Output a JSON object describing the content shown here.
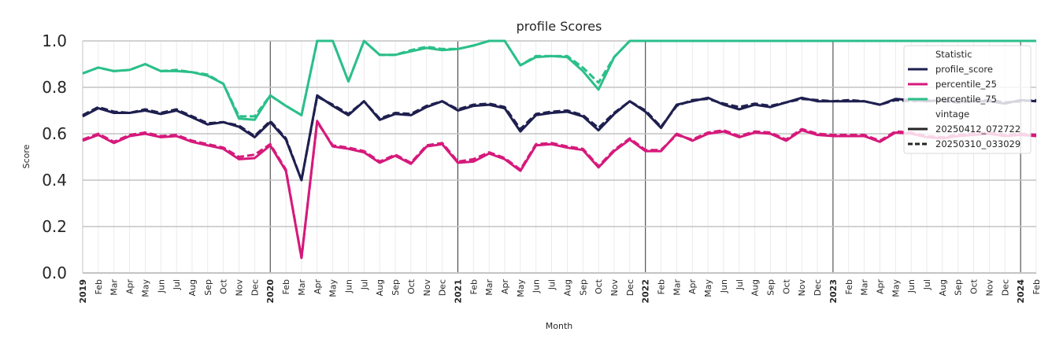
{
  "chart_data": {
    "type": "line",
    "title": "profile Scores",
    "xlabel": "Month",
    "ylabel": "Score",
    "ylim": [
      0,
      1.0
    ],
    "yticks": [
      "0.0",
      "0.2",
      "0.4",
      "0.6",
      "0.8",
      "1.0"
    ],
    "x": [
      "2019-01",
      "2019-02",
      "2019-03",
      "2019-04",
      "2019-05",
      "2019-06",
      "2019-07",
      "2019-08",
      "2019-09",
      "2019-10",
      "2019-11",
      "2019-12",
      "2020-01",
      "2020-02",
      "2020-03",
      "2020-04",
      "2020-05",
      "2020-06",
      "2020-07",
      "2020-08",
      "2020-09",
      "2020-10",
      "2020-11",
      "2020-12",
      "2021-01",
      "2021-02",
      "2021-03",
      "2021-04",
      "2021-05",
      "2021-06",
      "2021-07",
      "2021-08",
      "2021-09",
      "2021-10",
      "2021-11",
      "2021-12",
      "2022-01",
      "2022-02",
      "2022-03",
      "2022-04",
      "2022-05",
      "2022-06",
      "2022-07",
      "2022-08",
      "2022-09",
      "2022-10",
      "2022-11",
      "2022-12",
      "2023-01",
      "2023-02",
      "2023-03",
      "2023-04",
      "2023-05",
      "2023-06",
      "2023-07",
      "2023-08",
      "2023-09",
      "2023-10",
      "2023-11",
      "2023-12",
      "2024-01",
      "2024-02"
    ],
    "xtick_labels": [
      "2019",
      "Feb",
      "Mar",
      "Apr",
      "May",
      "Jun",
      "Jul",
      "Aug",
      "Sep",
      "Oct",
      "Nov",
      "Dec",
      "2020",
      "Feb",
      "Mar",
      "Apr",
      "May",
      "Jun",
      "Jul",
      "Aug",
      "Sep",
      "Oct",
      "Nov",
      "Dec",
      "2021",
      "Feb",
      "Mar",
      "Apr",
      "May",
      "Jun",
      "Jul",
      "Aug",
      "Sep",
      "Oct",
      "Nov",
      "Dec",
      "2022",
      "Feb",
      "Mar",
      "Apr",
      "May",
      "Jun",
      "Jul",
      "Aug",
      "Sep",
      "Oct",
      "Nov",
      "Dec",
      "2023",
      "Feb",
      "Mar",
      "Apr",
      "May",
      "Jun",
      "Jul",
      "Aug",
      "Sep",
      "Oct",
      "Nov",
      "Dec",
      "2024",
      "Feb"
    ],
    "grid": true,
    "legend_position": "top-right",
    "legend": {
      "statistic_title": "Statistic",
      "vintage_title": "vintage"
    },
    "series": [
      {
        "name": "profile_score",
        "vintage": "20250412_072722",
        "color": "#1e1f4f",
        "style": "solid",
        "values": [
          0.675,
          0.71,
          0.69,
          0.69,
          0.7,
          0.685,
          0.7,
          0.67,
          0.64,
          0.65,
          0.63,
          0.585,
          0.65,
          0.575,
          0.4,
          0.765,
          0.72,
          0.68,
          0.74,
          0.66,
          0.685,
          0.68,
          0.715,
          0.74,
          0.7,
          0.72,
          0.725,
          0.71,
          0.61,
          0.68,
          0.69,
          0.695,
          0.675,
          0.615,
          0.685,
          0.74,
          0.695,
          0.625,
          0.725,
          0.74,
          0.755,
          0.725,
          0.705,
          0.725,
          0.715,
          0.735,
          0.755,
          0.74,
          0.74,
          0.74,
          0.74,
          0.725,
          0.75,
          0.745,
          0.74,
          0.745,
          0.74,
          0.74,
          0.74,
          0.73,
          0.745,
          0.74
        ]
      },
      {
        "name": "profile_score",
        "vintage": "20250310_033029",
        "color": "#1e1f4f",
        "style": "dashed",
        "values": [
          0.68,
          0.715,
          0.695,
          0.69,
          0.705,
          0.69,
          0.705,
          0.675,
          0.645,
          0.65,
          0.635,
          0.59,
          0.655,
          0.58,
          0.4,
          0.76,
          0.725,
          0.685,
          0.74,
          0.665,
          0.69,
          0.685,
          0.72,
          0.74,
          0.705,
          0.725,
          0.73,
          0.715,
          0.62,
          0.685,
          0.695,
          0.7,
          0.68,
          0.625,
          0.69,
          0.74,
          0.7,
          0.63,
          0.72,
          0.745,
          0.75,
          0.73,
          0.715,
          0.73,
          0.72,
          0.735,
          0.75,
          0.745,
          0.74,
          0.745,
          0.74,
          0.725,
          0.745,
          0.74,
          0.745,
          0.74,
          0.735,
          0.74,
          0.745,
          0.735,
          0.74,
          0.745
        ]
      },
      {
        "name": "percentile_25",
        "vintage": "20250412_072722",
        "color": "#d6197b",
        "style": "solid",
        "values": [
          0.57,
          0.595,
          0.56,
          0.59,
          0.6,
          0.585,
          0.59,
          0.565,
          0.55,
          0.535,
          0.49,
          0.495,
          0.55,
          0.44,
          0.065,
          0.655,
          0.545,
          0.535,
          0.52,
          0.475,
          0.505,
          0.47,
          0.545,
          0.555,
          0.475,
          0.48,
          0.515,
          0.49,
          0.44,
          0.55,
          0.555,
          0.54,
          0.53,
          0.455,
          0.525,
          0.575,
          0.525,
          0.525,
          0.6,
          0.57,
          0.6,
          0.61,
          0.585,
          0.605,
          0.6,
          0.57,
          0.615,
          0.595,
          0.59,
          0.59,
          0.59,
          0.565,
          0.605,
          0.6,
          0.585,
          0.58,
          0.59,
          0.595,
          0.6,
          0.59,
          0.595,
          0.59
        ]
      },
      {
        "name": "percentile_25",
        "vintage": "20250310_033029",
        "color": "#d6197b",
        "style": "dashed",
        "values": [
          0.575,
          0.6,
          0.565,
          0.595,
          0.605,
          0.59,
          0.595,
          0.57,
          0.555,
          0.54,
          0.5,
          0.51,
          0.555,
          0.445,
          0.065,
          0.65,
          0.55,
          0.54,
          0.525,
          0.48,
          0.51,
          0.475,
          0.55,
          0.56,
          0.48,
          0.49,
          0.52,
          0.495,
          0.445,
          0.555,
          0.56,
          0.545,
          0.535,
          0.46,
          0.53,
          0.58,
          0.53,
          0.53,
          0.595,
          0.575,
          0.605,
          0.615,
          0.59,
          0.61,
          0.605,
          0.575,
          0.62,
          0.6,
          0.595,
          0.595,
          0.595,
          0.57,
          0.61,
          0.605,
          0.59,
          0.585,
          0.595,
          0.6,
          0.605,
          0.595,
          0.6,
          0.595
        ]
      },
      {
        "name": "percentile_75",
        "vintage": "20250412_072722",
        "color": "#2bbf8a",
        "style": "solid",
        "values": [
          0.86,
          0.885,
          0.87,
          0.875,
          0.9,
          0.87,
          0.87,
          0.865,
          0.85,
          0.815,
          0.665,
          0.66,
          0.765,
          0.72,
          0.68,
          1.0,
          1.0,
          0.825,
          1.0,
          0.94,
          0.94,
          0.955,
          0.97,
          0.96,
          0.965,
          0.98,
          1.0,
          1.0,
          0.895,
          0.93,
          0.935,
          0.93,
          0.87,
          0.79,
          0.93,
          1.0,
          1.0,
          1.0,
          1.0,
          1.0,
          1.0,
          1.0,
          1.0,
          1.0,
          1.0,
          1.0,
          1.0,
          1.0,
          1.0,
          1.0,
          1.0,
          1.0,
          1.0,
          1.0,
          1.0,
          1.0,
          1.0,
          1.0,
          1.0,
          1.0,
          1.0,
          1.0
        ]
      },
      {
        "name": "percentile_75",
        "vintage": "20250310_033029",
        "color": "#2bbf8a",
        "style": "dashed",
        "values": [
          0.86,
          0.885,
          0.87,
          0.875,
          0.9,
          0.87,
          0.875,
          0.865,
          0.855,
          0.815,
          0.675,
          0.675,
          0.765,
          0.72,
          0.68,
          1.0,
          1.0,
          0.825,
          1.0,
          0.94,
          0.94,
          0.96,
          0.975,
          0.965,
          0.965,
          0.98,
          1.0,
          1.0,
          0.895,
          0.935,
          0.935,
          0.935,
          0.885,
          0.82,
          0.93,
          1.0,
          1.0,
          1.0,
          1.0,
          1.0,
          1.0,
          1.0,
          1.0,
          1.0,
          1.0,
          1.0,
          1.0,
          1.0,
          1.0,
          1.0,
          1.0,
          1.0,
          1.0,
          1.0,
          1.0,
          1.0,
          1.0,
          1.0,
          1.0,
          1.0,
          1.0,
          1.0
        ]
      }
    ],
    "legend_entries": [
      {
        "label": "profile_score",
        "color": "#1e1f4f",
        "style": "solid"
      },
      {
        "label": "percentile_25",
        "color": "#d6197b",
        "style": "solid"
      },
      {
        "label": "percentile_75",
        "color": "#2bbf8a",
        "style": "solid"
      },
      {
        "label": "20250412_072722",
        "color": "#262626",
        "style": "solid"
      },
      {
        "label": "20250310_033029",
        "color": "#262626",
        "style": "dashed"
      }
    ]
  }
}
